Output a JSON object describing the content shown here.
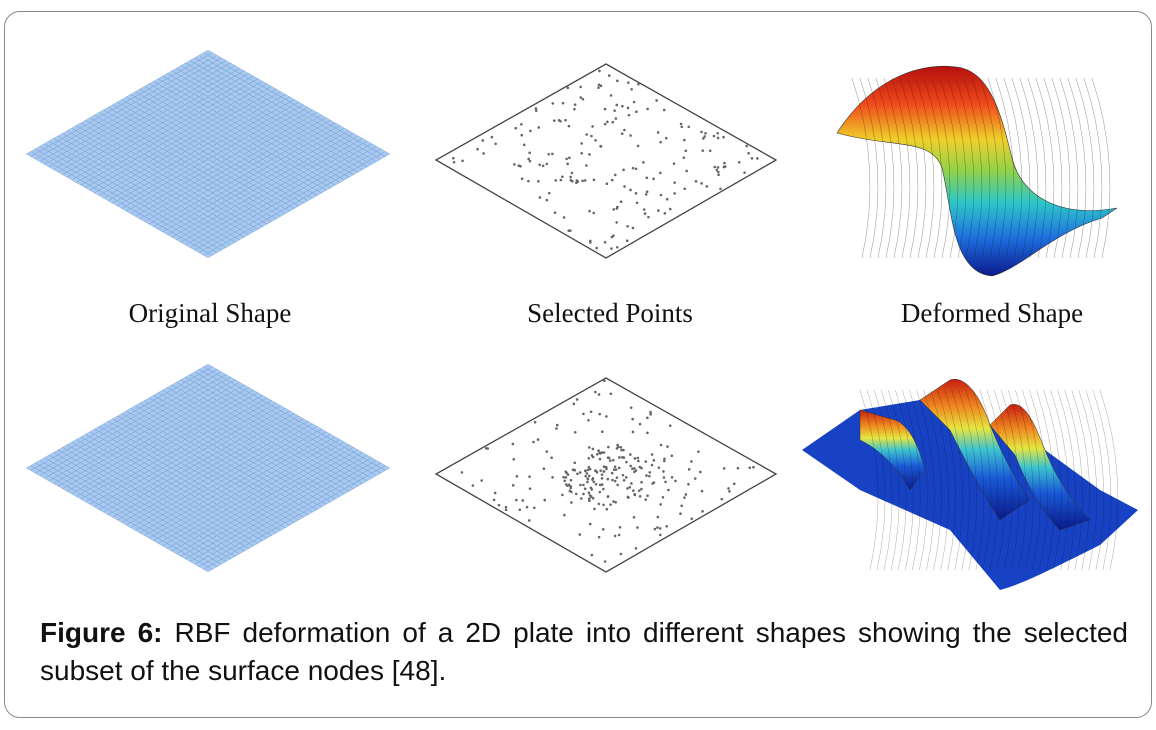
{
  "figure": {
    "labels": {
      "original": "Original Shape",
      "selected": "Selected Points",
      "deformed": "Deformed Shape"
    },
    "caption": {
      "label": "Figure 6:",
      "text": " RBF deformation of a 2D plate into different shapes showing the selected subset of the surface nodes [48]."
    },
    "colors": {
      "plate_fill": "#a9c9ee",
      "plate_grid": "#7aa6dc",
      "points": "#666666",
      "outline": "#444444"
    }
  }
}
